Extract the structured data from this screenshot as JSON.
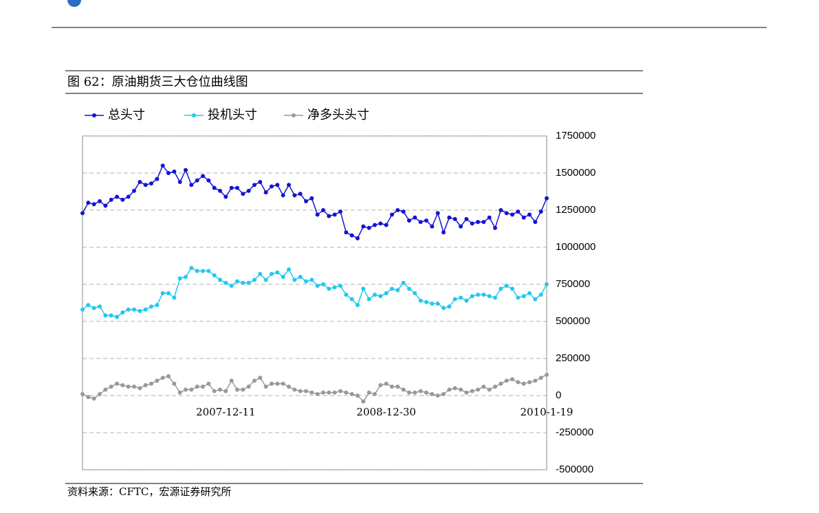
{
  "chart_data": {
    "type": "line",
    "title": "图 62：原油期货三大仓位曲线图",
    "categories": [
      null,
      null,
      null,
      null,
      null,
      null,
      null,
      null,
      null,
      null,
      null,
      null,
      null,
      null,
      null,
      null,
      null,
      null,
      null,
      null,
      null,
      null,
      null,
      null,
      null,
      "2007-12-11",
      null,
      null,
      null,
      null,
      null,
      null,
      null,
      null,
      null,
      null,
      null,
      null,
      null,
      null,
      null,
      null,
      null,
      null,
      null,
      null,
      null,
      null,
      null,
      null,
      null,
      null,
      null,
      "2008-12-30",
      null,
      null,
      null,
      null,
      null,
      null,
      null,
      null,
      null,
      null,
      null,
      null,
      null,
      null,
      null,
      null,
      null,
      null,
      null,
      null,
      null,
      null,
      null,
      null,
      null,
      null,
      null,
      "2010-1-19"
    ],
    "series": [
      {
        "name": "总头寸",
        "color": "#1414d2",
        "values": [
          1230000,
          1300000,
          1290000,
          1310000,
          1280000,
          1320000,
          1340000,
          1320000,
          1340000,
          1380000,
          1440000,
          1420000,
          1430000,
          1460000,
          1550000,
          1500000,
          1510000,
          1440000,
          1520000,
          1420000,
          1450000,
          1480000,
          1450000,
          1400000,
          1380000,
          1340000,
          1400000,
          1400000,
          1360000,
          1380000,
          1420000,
          1440000,
          1370000,
          1410000,
          1420000,
          1350000,
          1420000,
          1350000,
          1360000,
          1310000,
          1330000,
          1220000,
          1250000,
          1210000,
          1220000,
          1240000,
          1100000,
          1080000,
          1060000,
          1140000,
          1130000,
          1150000,
          1160000,
          1150000,
          1220000,
          1250000,
          1240000,
          1180000,
          1200000,
          1170000,
          1180000,
          1140000,
          1230000,
          1100000,
          1200000,
          1190000,
          1140000,
          1190000,
          1160000,
          1170000,
          1170000,
          1200000,
          1130000,
          1250000,
          1230000,
          1220000,
          1240000,
          1200000,
          1220000,
          1170000,
          1240000,
          1330000
        ]
      },
      {
        "name": "投机头寸",
        "color": "#22c8ee",
        "values": [
          580000,
          610000,
          590000,
          600000,
          540000,
          540000,
          530000,
          560000,
          580000,
          580000,
          570000,
          580000,
          600000,
          610000,
          690000,
          690000,
          660000,
          790000,
          800000,
          860000,
          840000,
          840000,
          840000,
          810000,
          780000,
          760000,
          740000,
          770000,
          760000,
          760000,
          780000,
          820000,
          780000,
          820000,
          830000,
          800000,
          850000,
          780000,
          800000,
          770000,
          780000,
          740000,
          750000,
          720000,
          730000,
          740000,
          680000,
          650000,
          610000,
          720000,
          650000,
          680000,
          670000,
          690000,
          720000,
          710000,
          760000,
          720000,
          690000,
          640000,
          630000,
          620000,
          620000,
          590000,
          600000,
          650000,
          660000,
          640000,
          670000,
          680000,
          680000,
          670000,
          660000,
          720000,
          740000,
          720000,
          660000,
          670000,
          690000,
          650000,
          680000,
          750000
        ]
      },
      {
        "name": "净多头头寸",
        "color": "#999999",
        "values": [
          10000,
          -10000,
          -20000,
          10000,
          40000,
          60000,
          80000,
          70000,
          60000,
          60000,
          50000,
          70000,
          80000,
          100000,
          120000,
          130000,
          80000,
          20000,
          40000,
          40000,
          60000,
          60000,
          80000,
          30000,
          40000,
          30000,
          100000,
          40000,
          40000,
          60000,
          100000,
          120000,
          60000,
          80000,
          80000,
          80000,
          60000,
          40000,
          30000,
          30000,
          20000,
          10000,
          20000,
          20000,
          20000,
          30000,
          20000,
          10000,
          0,
          -40000,
          20000,
          10000,
          70000,
          80000,
          60000,
          60000,
          40000,
          20000,
          20000,
          30000,
          20000,
          10000,
          0,
          10000,
          40000,
          50000,
          40000,
          20000,
          30000,
          40000,
          60000,
          40000,
          60000,
          80000,
          100000,
          110000,
          90000,
          80000,
          90000,
          100000,
          120000,
          140000
        ]
      }
    ],
    "ylim": [
      -500000,
      1750000
    ],
    "yticks": [
      -500000,
      -250000,
      0,
      250000,
      500000,
      750000,
      1000000,
      1250000,
      1500000,
      1750000
    ],
    "grid": true
  },
  "source": "资料来源：CFTC，宏源证券研究所"
}
